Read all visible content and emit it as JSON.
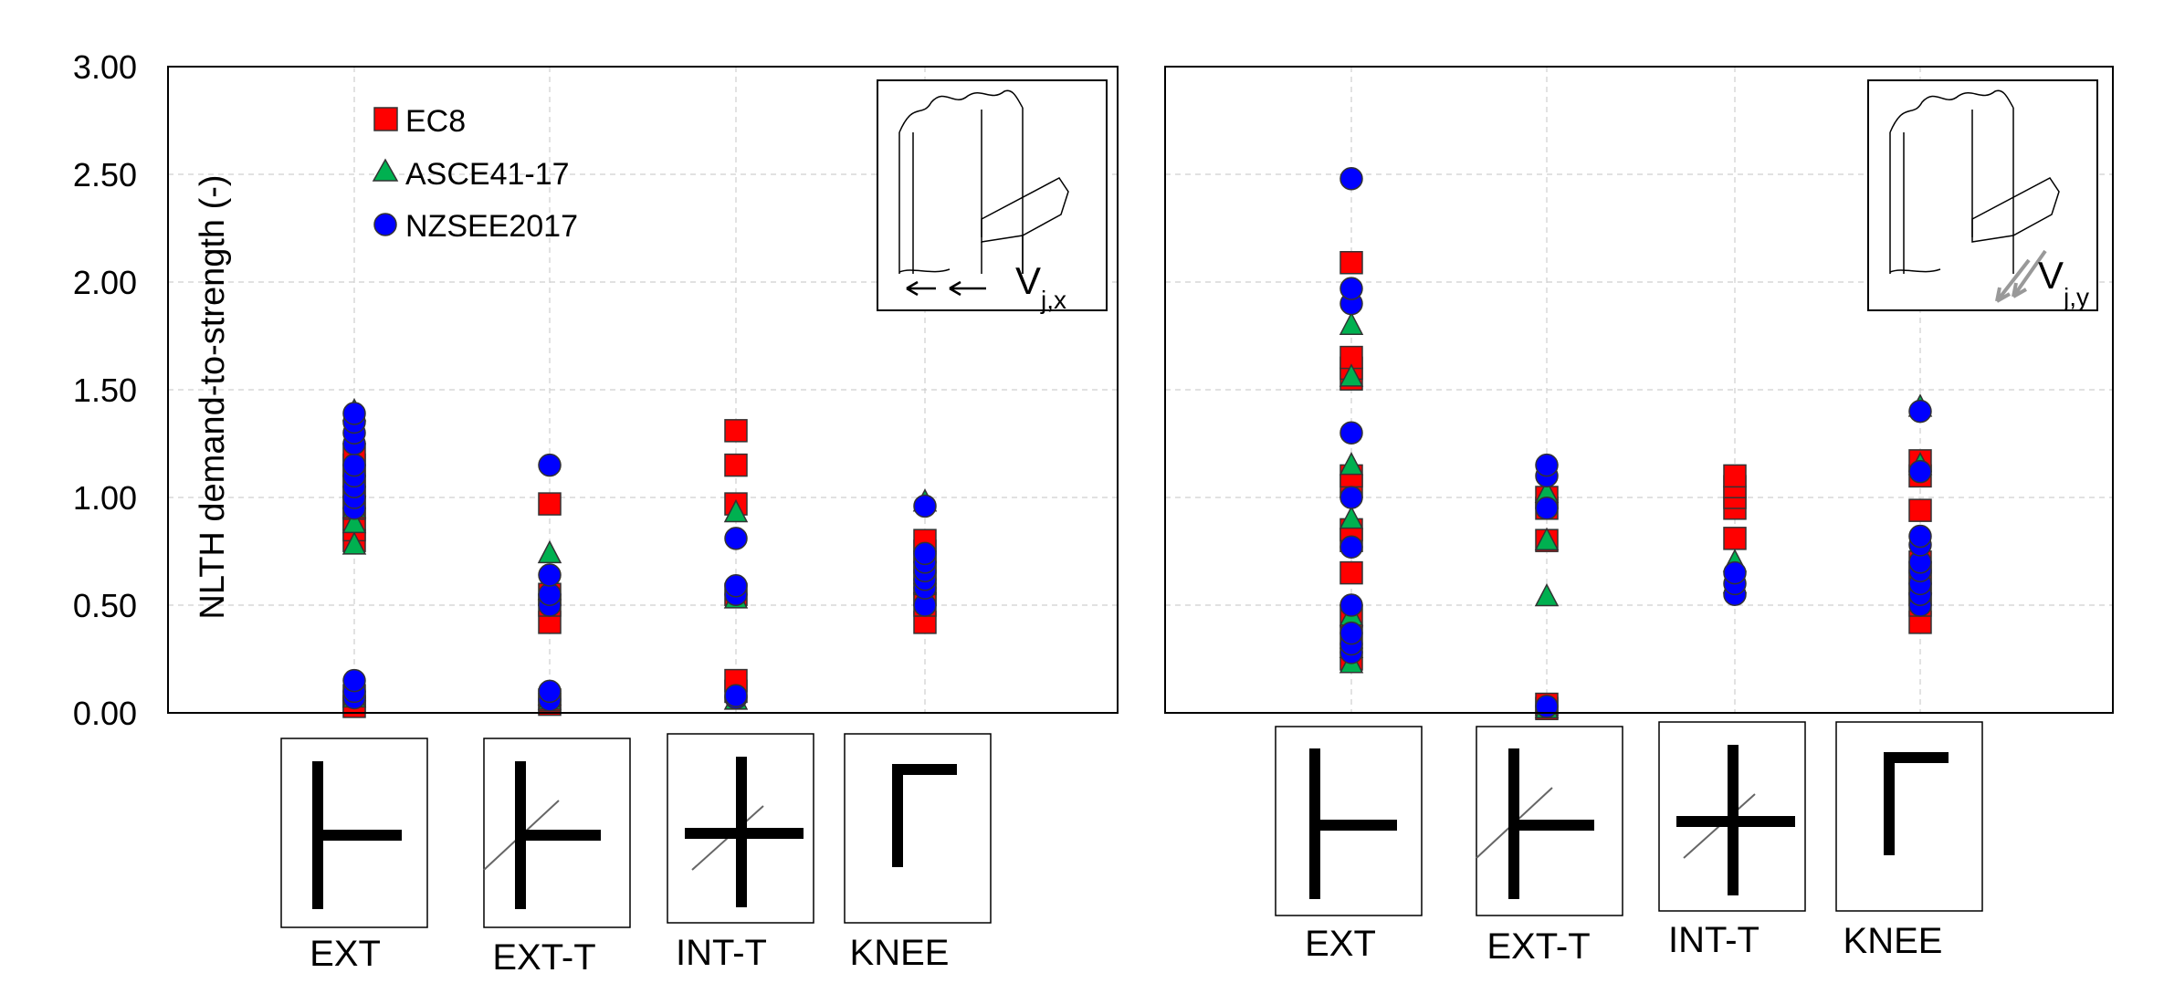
{
  "chart_data": [
    {
      "type": "scatter",
      "title": "",
      "xlabel": "",
      "ylabel": "NLTH demand-to-strength (-)",
      "ylim": [
        0,
        3
      ],
      "yticks": [
        "0.00",
        "0.50",
        "1.00",
        "1.50",
        "2.00",
        "2.50",
        "3.00"
      ],
      "categories": [
        "EXT",
        "EXT-T",
        "INT-T",
        "KNEE"
      ],
      "grid": true,
      "legend_position": "top-left",
      "inset_label": "V",
      "inset_subscript": "j,x",
      "series": [
        {
          "name": "EC8",
          "marker": "square",
          "color": "#ff0000",
          "values": [
            [
              0.03,
              0.05,
              0.08,
              0.8,
              0.85,
              0.9,
              0.95,
              1.0,
              1.05,
              1.1,
              1.15,
              1.2
            ],
            [
              0.04,
              0.06,
              0.42,
              0.5,
              0.55,
              0.97
            ],
            [
              0.1,
              0.15,
              0.55,
              0.97,
              1.15,
              1.31
            ],
            [
              0.42,
              0.5,
              0.55,
              0.6,
              0.65,
              0.7,
              0.75,
              0.8
            ]
          ]
        },
        {
          "name": "ASCE41-17",
          "marker": "triangle",
          "color": "#00b050",
          "values": [
            [
              0.07,
              0.1,
              0.78,
              0.88,
              0.95,
              1.05,
              1.4
            ],
            [
              0.06,
              0.08,
              0.57,
              0.74
            ],
            [
              0.06,
              0.53,
              0.93
            ],
            [
              0.6,
              0.98
            ]
          ]
        },
        {
          "name": "NZSEE2017",
          "marker": "circle",
          "color": "#0000ff",
          "values": [
            [
              0.07,
              0.1,
              0.15,
              0.95,
              1.0,
              1.05,
              1.1,
              1.15,
              1.25,
              1.3,
              1.35,
              1.39
            ],
            [
              0.06,
              0.1,
              0.5,
              0.55,
              0.64,
              1.15
            ],
            [
              0.07,
              0.08,
              0.55,
              0.59,
              0.81
            ],
            [
              0.5,
              0.58,
              0.62,
              0.66,
              0.7,
              0.74,
              0.96
            ]
          ]
        }
      ]
    },
    {
      "type": "scatter",
      "title": "",
      "xlabel": "",
      "ylabel": "",
      "ylim": [
        0,
        3
      ],
      "categories": [
        "EXT",
        "EXT-T",
        "INT-T",
        "KNEE"
      ],
      "grid": true,
      "inset_label": "V",
      "inset_subscript": "j,y",
      "series": [
        {
          "name": "EC8",
          "marker": "square",
          "color": "#ff0000",
          "values": [
            [
              0.25,
              0.35,
              0.45,
              0.65,
              0.8,
              0.85,
              1.05,
              1.1,
              1.55,
              1.6,
              1.65,
              2.09
            ],
            [
              0.02,
              0.04,
              0.8,
              0.95,
              1.0
            ],
            [
              0.81,
              0.95,
              1.0,
              1.05,
              1.1
            ],
            [
              0.42,
              0.5,
              0.55,
              0.6,
              0.65,
              0.7,
              0.94,
              1.1,
              1.17
            ]
          ]
        },
        {
          "name": "ASCE41-17",
          "marker": "triangle",
          "color": "#00b050",
          "values": [
            [
              0.23,
              0.3,
              0.45,
              0.9,
              1.15,
              1.56,
              1.8
            ],
            [
              0.02,
              0.54,
              0.8,
              1.02
            ],
            [
              0.6,
              0.7
            ],
            [
              0.6,
              1.15,
              1.42
            ]
          ]
        },
        {
          "name": "NZSEE2017",
          "marker": "circle",
          "color": "#0000ff",
          "values": [
            [
              0.28,
              0.32,
              0.37,
              0.5,
              0.77,
              1.0,
              1.3,
              1.9,
              1.97,
              2.48
            ],
            [
              0.03,
              0.95,
              1.1,
              1.15
            ],
            [
              0.55,
              0.6,
              0.65
            ],
            [
              0.5,
              0.55,
              0.6,
              0.66,
              0.7,
              0.78,
              0.82,
              1.12,
              1.4
            ]
          ]
        }
      ]
    }
  ]
}
